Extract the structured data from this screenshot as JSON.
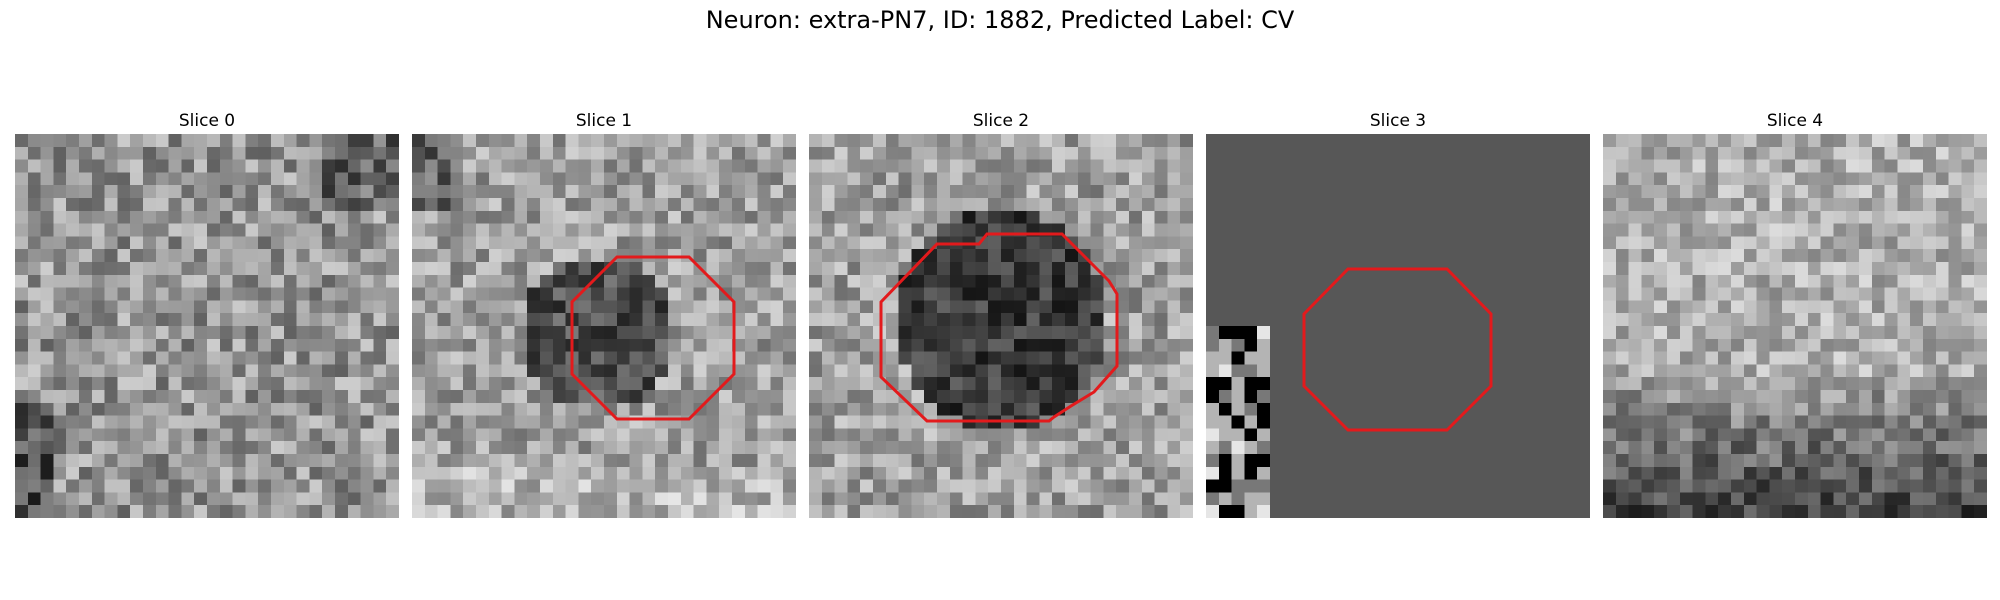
{
  "figure": {
    "title": "Neuron: extra-PN7, ID: 1882, Predicted Label: CV",
    "panels": [
      {
        "title": "Slice 0",
        "background": "#8f8f8f",
        "texture": "noise",
        "has_roi": false
      },
      {
        "title": "Slice 1",
        "background": "#a0a0a0",
        "texture": "blob",
        "has_roi": true
      },
      {
        "title": "Slice 2",
        "background": "#9a9a9a",
        "texture": "large-blob",
        "has_roi": true
      },
      {
        "title": "Slice 3",
        "background": "#575757",
        "texture": "flat-with-edge",
        "has_roi": true
      },
      {
        "title": "Slice 4",
        "background": "#b0b0b0",
        "texture": "gradient-bottom",
        "has_roi": false
      }
    ],
    "roi_color": "#e31a1c"
  }
}
